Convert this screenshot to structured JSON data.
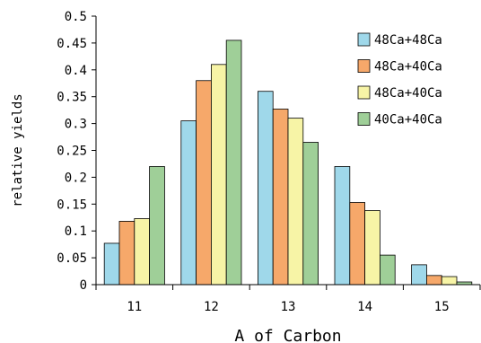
{
  "chart_data": {
    "type": "bar",
    "title": "",
    "xlabel": "A of Carbon",
    "ylabel": "relative yields",
    "ylim": [
      0,
      0.5
    ],
    "yticks": [
      "0",
      "0.05",
      "0.1",
      "0.15",
      "0.2",
      "0.25",
      "0.3",
      "0.35",
      "0.4",
      "0.45",
      "0.5"
    ],
    "categories": [
      "11",
      "12",
      "13",
      "14",
      "15"
    ],
    "grid": false,
    "legend_position": "top-right",
    "series": [
      {
        "name": "48Ca+48Ca",
        "color": "#9fd8ea",
        "values": [
          0.077,
          0.305,
          0.36,
          0.22,
          0.037
        ]
      },
      {
        "name": "48Ca+40Ca",
        "color": "#f6a86a",
        "values": [
          0.118,
          0.38,
          0.327,
          0.153,
          0.017
        ]
      },
      {
        "name": "48Ca+40Ca",
        "color": "#f7f4a6",
        "values": [
          0.123,
          0.41,
          0.31,
          0.138,
          0.015
        ]
      },
      {
        "name": "40Ca+40Ca",
        "color": "#9fcf98",
        "values": [
          0.22,
          0.455,
          0.265,
          0.055,
          0.005
        ]
      }
    ]
  }
}
